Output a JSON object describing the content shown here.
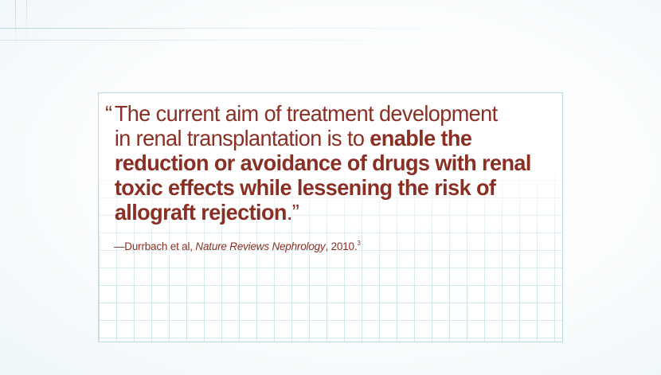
{
  "quote": {
    "open_mark": "“",
    "line1": "The current aim of treatment development",
    "line2_plain": "in renal transplantation is to ",
    "line2_bold": "enable the",
    "line3_bold": "reduction or avoidance of drugs with renal",
    "line4_bold": "toxic effects while lessening the risk of",
    "line5_bold": "allograft rejection",
    "close_mark": ".”"
  },
  "citation": {
    "prefix": "—Durrbach et al, ",
    "journal": "Nature Reviews Nephrology",
    "year": ", 2010.",
    "reference": "3"
  },
  "colors": {
    "text": "#8a2f23",
    "card_border": "#bcd9e5",
    "grid": "#b0d4e2"
  }
}
